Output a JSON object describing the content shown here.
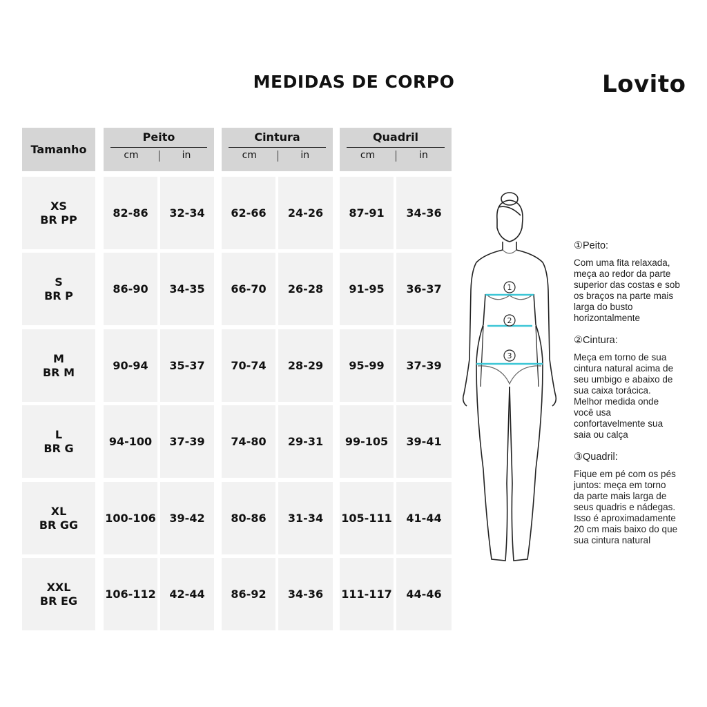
{
  "title": "MEDIDAS DE CORPO",
  "brand": "Lovito",
  "table": {
    "size_header": "Tamanho",
    "groups": [
      {
        "label": "Peito",
        "units": [
          "cm",
          "in"
        ]
      },
      {
        "label": "Cintura",
        "units": [
          "cm",
          "in"
        ]
      },
      {
        "label": "Quadril",
        "units": [
          "cm",
          "in"
        ]
      }
    ],
    "rows": [
      {
        "size": "XS",
        "br": "BR PP",
        "values": [
          "82-86",
          "32-34",
          "62-66",
          "24-26",
          "87-91",
          "34-36"
        ]
      },
      {
        "size": "S",
        "br": "BR P",
        "values": [
          "86-90",
          "34-35",
          "66-70",
          "26-28",
          "91-95",
          "36-37"
        ]
      },
      {
        "size": "M",
        "br": "BR M",
        "values": [
          "90-94",
          "35-37",
          "70-74",
          "28-29",
          "95-99",
          "37-39"
        ]
      },
      {
        "size": "L",
        "br": "BR G",
        "values": [
          "94-100",
          "37-39",
          "74-80",
          "29-31",
          "99-105",
          "39-41"
        ]
      },
      {
        "size": "XL",
        "br": "BR GG",
        "values": [
          "100-106",
          "39-42",
          "80-86",
          "31-34",
          "105-111",
          "41-44"
        ]
      },
      {
        "size": "XXL",
        "br": "BR EG",
        "values": [
          "106-112",
          "42-44",
          "86-92",
          "34-36",
          "111-117",
          "44-46"
        ]
      }
    ]
  },
  "figure": {
    "markers": [
      "1",
      "2",
      "3"
    ],
    "line_color": "#3cc6d6"
  },
  "guide": [
    {
      "heading": "①Peito:",
      "text": "Com uma fita relaxada,\nmeça ao redor da parte\nsuperior das costas e sob\nos braços na parte mais\nlarga do busto\nhorizontalmente"
    },
    {
      "heading": "②Cintura:",
      "text": "Meça em torno de sua\ncintura natural acima de\nseu umbigo e abaixo de\nsua caixa torácica.\nMelhor medida onde\nvocê usa\nconfortavelmente sua\nsaia ou calça"
    },
    {
      "heading": "③Quadril:",
      "text": "Fique em pé com os pés\njuntos: meça em torno\nda parte mais larga de\nseus quadris e nádegas.\nIsso é aproximadamente\n20 cm mais baixo do que\nsua cintura natural"
    }
  ]
}
